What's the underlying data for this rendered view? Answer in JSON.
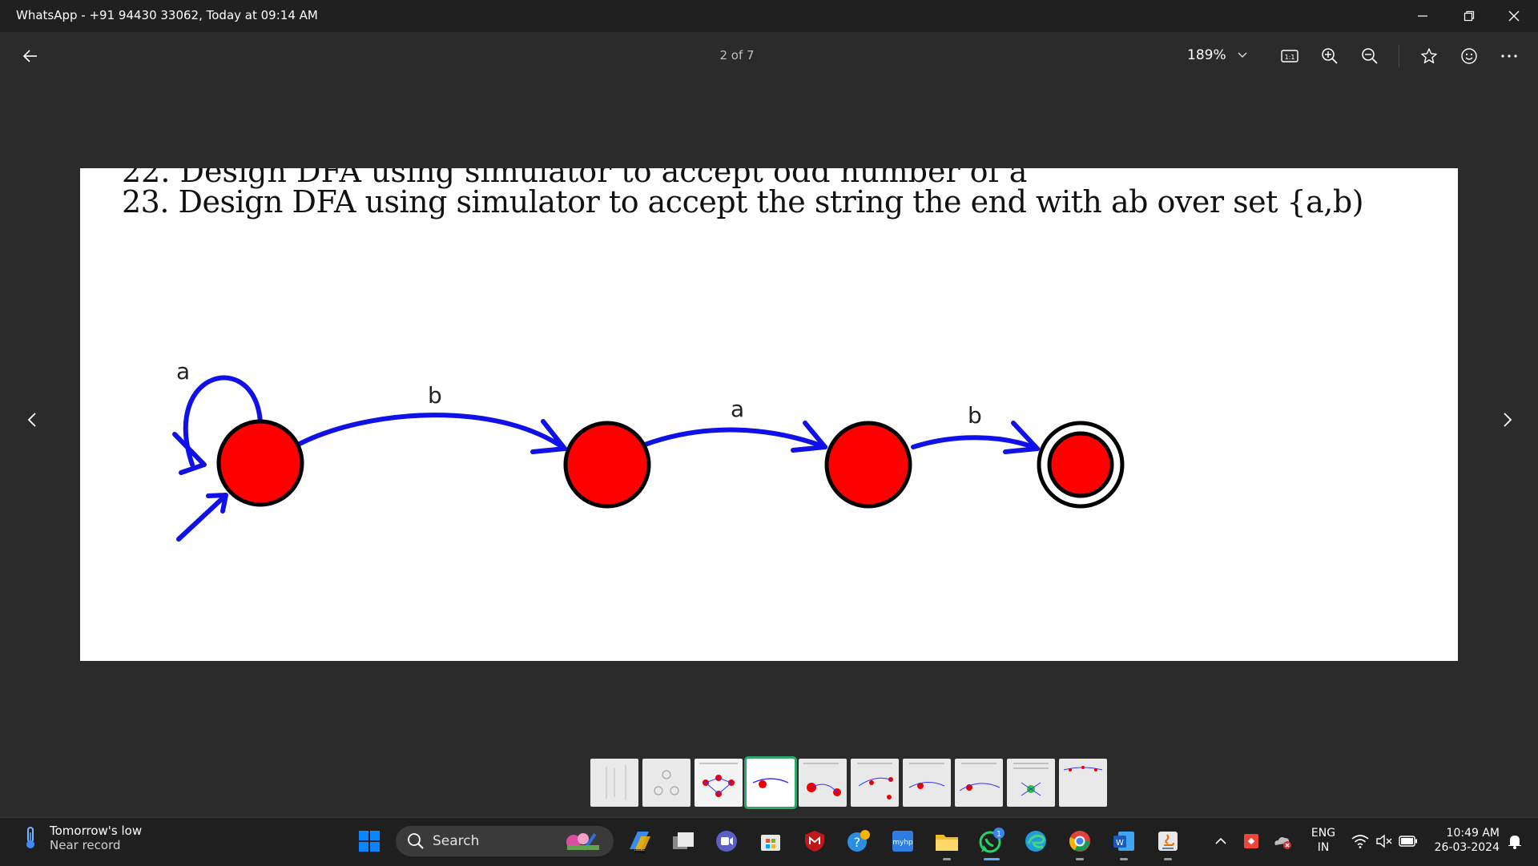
{
  "window": {
    "title": "WhatsApp - +91 94430 33062, Today at 09:14 AM"
  },
  "toolbar": {
    "page_indicator": "2 of 7",
    "zoom_level": "189%"
  },
  "document": {
    "prev_question_partial": "22. Design DFA using simulator to accept odd number of a",
    "question_heading": "23.  Design DFA using simulator to accept the string the end with ab over set {a,b)"
  },
  "diagram": {
    "states": 4,
    "transition_labels": [
      "a",
      "b",
      "a",
      "b"
    ],
    "state_color": "#ff0000",
    "edge_color": "#1010e8"
  },
  "thumbnails": {
    "count": 10,
    "active_index": 3
  },
  "taskbar": {
    "weather_line1": "Tomorrow's low",
    "weather_line2": "Near record",
    "search_label": "Search",
    "language_line1": "ENG",
    "language_line2": "IN",
    "time": "10:49 AM",
    "date": "26-03-2024",
    "whatsapp_badge": "1"
  },
  "colors": {
    "accent": "#2ea76a",
    "background": "#2b2b2b"
  }
}
